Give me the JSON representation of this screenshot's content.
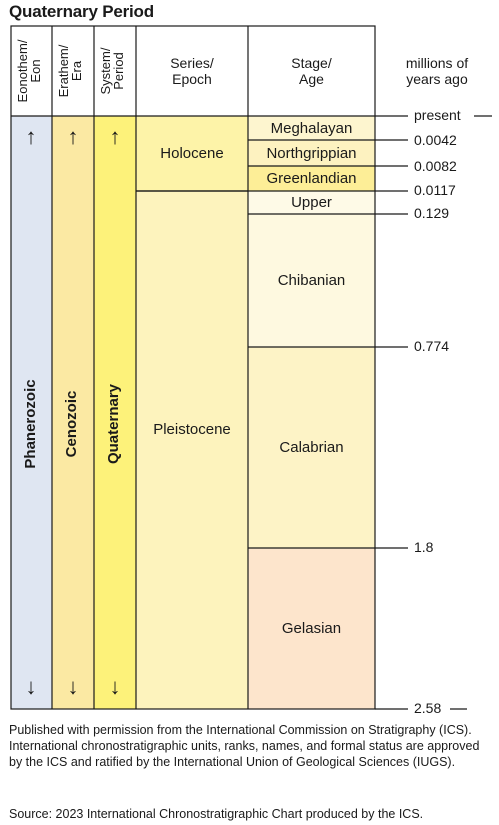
{
  "title": "Quaternary Period",
  "headers": {
    "eon": "Eonothem/\nEon",
    "era": "Erathem/\nEra",
    "period": "System/\nPeriod",
    "epoch": "Series/\nEpoch",
    "stage": "Stage/\nAge",
    "mya": "millions of\nyears ago"
  },
  "units": {
    "eon": "Phanerozoic",
    "era": "Cenozoic",
    "period": "Quaternary",
    "epoch_holocene": "Holocene",
    "epoch_pleistocene": "Pleistocene",
    "stages": [
      "Meghalayan",
      "Northgrippian",
      "Greenlandian",
      "Upper",
      "Chibanian",
      "Calabrian",
      "Gelasian"
    ]
  },
  "ages": [
    "present",
    "0.0042",
    "0.0082",
    "0.0117",
    "0.129",
    "0.774",
    "1.8",
    "2.58"
  ],
  "arrows": {
    "up": "↑",
    "down": "↓"
  },
  "colors": {
    "eon": "#dfe6f2",
    "era": "#fbe9a3",
    "period": "#fdf27a",
    "holocene": "#fdf3a8",
    "pleistocene": "#fdf3bd",
    "meghalayan": "#fdf5cf",
    "northgrippian": "#fdf2c0",
    "greenlandian": "#fdee97",
    "upper": "#fefae7",
    "chibanian": "#fef9e0",
    "calabrian": "#fdf3c6",
    "gelasian": "#fde5cc"
  },
  "footnote": "Published with permission from the International Commission on Stratigraphy (ICS). International chronostratigraphic units, ranks, names, and formal status are approved by the ICS and ratified by the International Union of Geological Sciences (IUGS).",
  "source": "Source: 2023 International Chronostratigraphic Chart produced by the ICS."
}
